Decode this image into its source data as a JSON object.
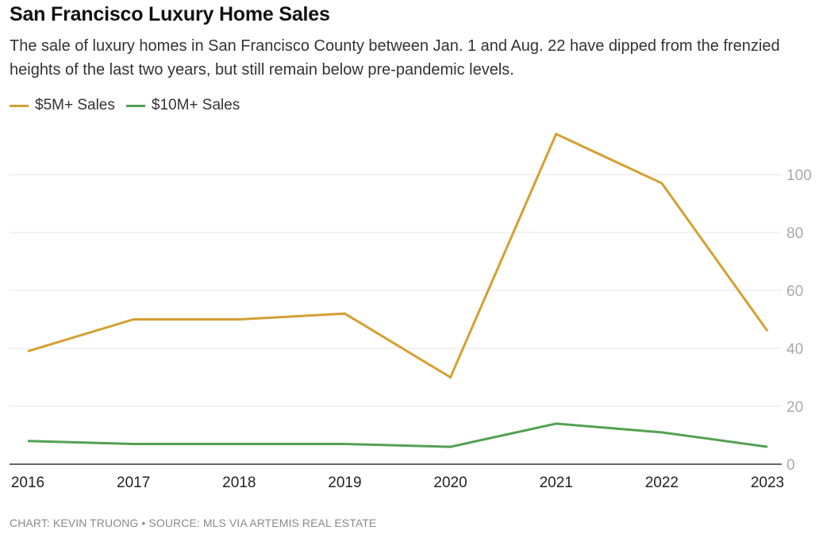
{
  "chart_data": {
    "type": "line",
    "title": "San Francisco Luxury Home Sales",
    "subtitle": "The sale of luxury homes in San Francisco County between Jan. 1 and Aug. 22 have dipped from the frenzied heights of the last two years, but still remain below pre-pandemic levels.",
    "x": [
      "2016",
      "2017",
      "2018",
      "2019",
      "2020",
      "2021",
      "2022",
      "2023"
    ],
    "series": [
      {
        "name": "$5M+ Sales",
        "color": "#d4a032",
        "values": [
          39,
          50,
          50,
          52,
          30,
          114,
          97,
          46
        ]
      },
      {
        "name": "$10M+ Sales",
        "color": "#53a151",
        "values": [
          8,
          7,
          7,
          7,
          6,
          14,
          11,
          6
        ]
      }
    ],
    "xlabel": "",
    "ylabel": "",
    "ylim": [
      0,
      120
    ],
    "yticks": [
      0,
      20,
      40,
      60,
      80,
      100
    ],
    "y_axis_side": "right",
    "grid": true,
    "legend_position": "top-left",
    "footer": "CHART: KEVIN TRUONG • SOURCE: MLS VIA ARTEMIS REAL ESTATE"
  }
}
